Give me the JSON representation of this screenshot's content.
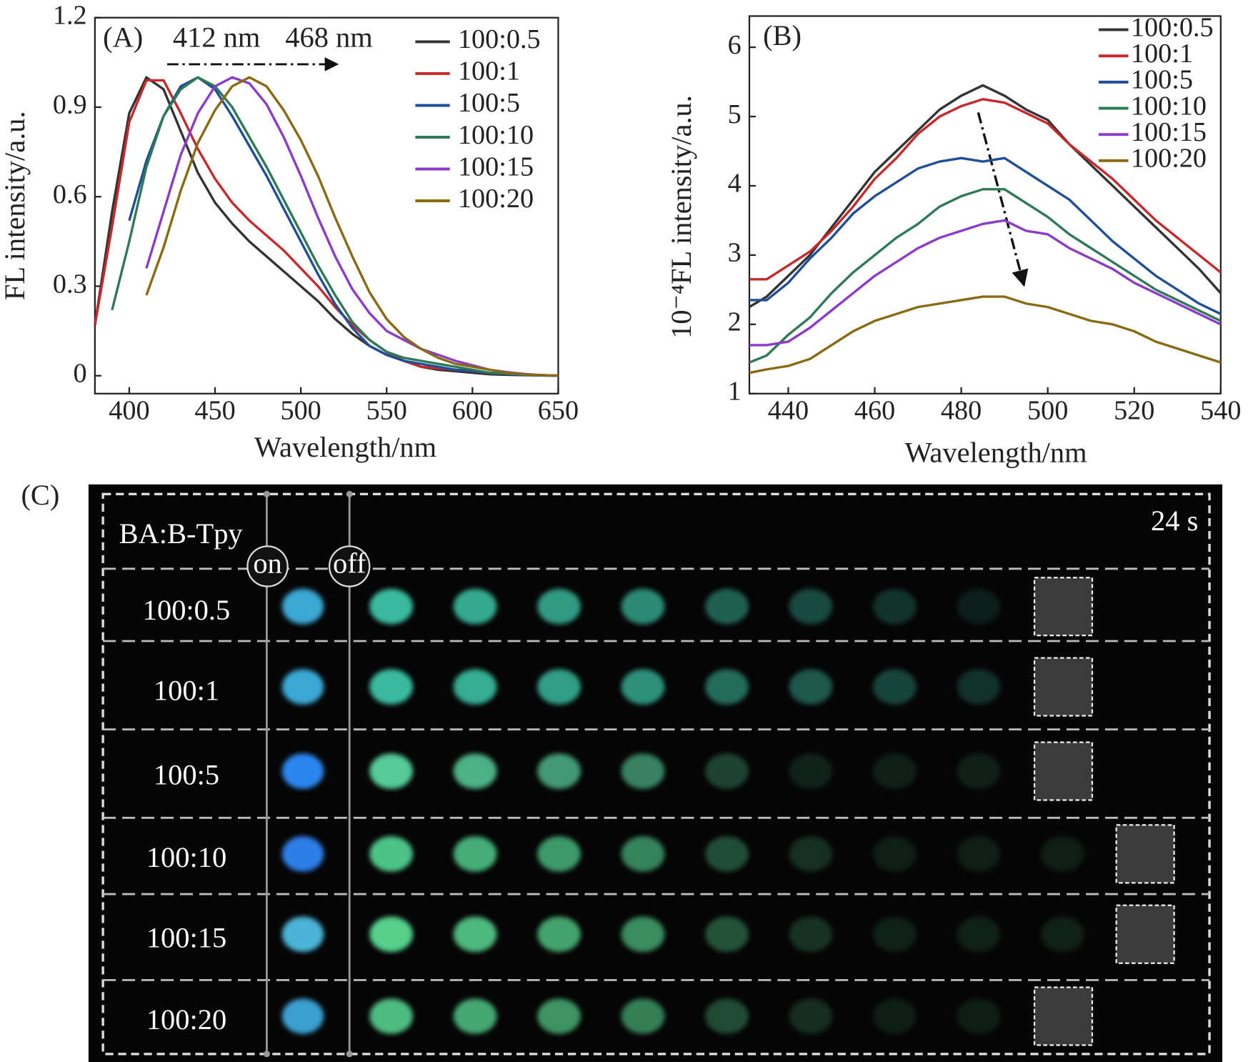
{
  "chart_data": [
    {
      "type": "line",
      "panel_label": "(A)",
      "xlabel": "Wavelength/nm",
      "ylabel": "FL intensity/a.u.",
      "annotations": [
        "412 nm",
        "468 nm"
      ],
      "x": [
        380,
        390,
        400,
        410,
        420,
        430,
        440,
        450,
        460,
        470,
        480,
        490,
        500,
        510,
        520,
        530,
        540,
        550,
        560,
        570,
        580,
        590,
        600,
        610,
        620,
        630,
        640,
        650
      ],
      "xlim": [
        380,
        650
      ],
      "xticks": [
        400,
        450,
        500,
        550,
        600,
        650
      ],
      "ylim": [
        -0.06,
        1.2
      ],
      "yticks": [
        0,
        0.3,
        0.6,
        0.9,
        1.2
      ],
      "series": [
        {
          "name": "100:0.5",
          "color": "#333333",
          "values": [
            0.17,
            0.55,
            0.88,
            1.0,
            0.96,
            0.82,
            0.68,
            0.58,
            0.51,
            0.45,
            0.4,
            0.35,
            0.3,
            0.25,
            0.19,
            0.14,
            0.1,
            0.07,
            0.05,
            0.03,
            0.02,
            0.015,
            0.01,
            0.005,
            0.003,
            0.002,
            0.001,
            0
          ]
        },
        {
          "name": "100:1",
          "color": "#c8282a",
          "values": [
            0.17,
            0.5,
            0.85,
            0.99,
            0.99,
            0.88,
            0.76,
            0.66,
            0.58,
            0.52,
            0.47,
            0.42,
            0.36,
            0.3,
            0.23,
            0.17,
            0.12,
            0.08,
            0.05,
            0.03,
            0.025,
            0.02,
            0.015,
            0.01,
            0.007,
            0.004,
            0.002,
            0
          ]
        },
        {
          "name": "100:5",
          "color": "#1f4e99",
          "values": [
            null,
            null,
            0.52,
            0.72,
            0.87,
            0.97,
            1.0,
            0.96,
            0.87,
            0.77,
            0.67,
            0.56,
            0.45,
            0.34,
            0.24,
            0.16,
            0.1,
            0.07,
            0.05,
            0.04,
            0.03,
            0.02,
            0.015,
            0.01,
            0.006,
            0.003,
            0.001,
            0
          ]
        },
        {
          "name": "100:10",
          "color": "#2e7a56",
          "values": [
            null,
            0.22,
            0.45,
            0.7,
            0.87,
            0.96,
            1.0,
            0.97,
            0.9,
            0.8,
            0.7,
            0.59,
            0.48,
            0.37,
            0.27,
            0.18,
            0.12,
            0.08,
            0.06,
            0.05,
            0.04,
            0.03,
            0.02,
            0.01,
            0.007,
            0.004,
            0.002,
            0
          ]
        },
        {
          "name": "100:15",
          "color": "#8a3bcc",
          "values": [
            null,
            null,
            null,
            0.36,
            0.55,
            0.74,
            0.88,
            0.97,
            1.0,
            0.98,
            0.91,
            0.8,
            0.67,
            0.53,
            0.4,
            0.29,
            0.21,
            0.15,
            0.12,
            0.09,
            0.07,
            0.05,
            0.035,
            0.02,
            0.012,
            0.006,
            0.002,
            0
          ]
        },
        {
          "name": "100:20",
          "color": "#8a6a10",
          "values": [
            null,
            null,
            null,
            0.27,
            0.43,
            0.62,
            0.78,
            0.89,
            0.97,
            1.0,
            0.97,
            0.89,
            0.79,
            0.67,
            0.53,
            0.4,
            0.28,
            0.19,
            0.13,
            0.09,
            0.06,
            0.04,
            0.03,
            0.02,
            0.01,
            0.005,
            0.002,
            0
          ]
        }
      ]
    },
    {
      "type": "line",
      "panel_label": "(B)",
      "xlabel": "Wavelength/nm",
      "ylabel": "10⁻⁴FL intensity/a.u.",
      "x": [
        431,
        435,
        440,
        445,
        450,
        455,
        460,
        465,
        470,
        475,
        480,
        485,
        490,
        495,
        500,
        505,
        510,
        515,
        520,
        525,
        530,
        535,
        540
      ],
      "xlim": [
        431,
        540
      ],
      "xticks": [
        440,
        460,
        480,
        500,
        520,
        540
      ],
      "ylim": [
        1,
        6.45
      ],
      "yticks": [
        1,
        2,
        3,
        4,
        5,
        6
      ],
      "series": [
        {
          "name": "100:0.5",
          "color": "#333333",
          "values": [
            2.25,
            2.4,
            2.7,
            3.0,
            3.4,
            3.8,
            4.2,
            4.5,
            4.8,
            5.1,
            5.3,
            5.45,
            5.3,
            5.1,
            4.95,
            4.6,
            4.3,
            4.0,
            3.7,
            3.4,
            3.1,
            2.8,
            2.45
          ]
        },
        {
          "name": "100:1",
          "color": "#c8282a",
          "values": [
            2.65,
            2.65,
            2.85,
            3.05,
            3.35,
            3.7,
            4.1,
            4.4,
            4.75,
            5.0,
            5.15,
            5.25,
            5.2,
            5.05,
            4.9,
            4.6,
            4.35,
            4.1,
            3.8,
            3.5,
            3.25,
            3.0,
            2.75
          ]
        },
        {
          "name": "100:5",
          "color": "#1f4e99",
          "values": [
            2.35,
            2.35,
            2.6,
            2.95,
            3.25,
            3.6,
            3.85,
            4.05,
            4.25,
            4.35,
            4.4,
            4.35,
            4.4,
            4.2,
            4.0,
            3.8,
            3.5,
            3.2,
            2.95,
            2.7,
            2.5,
            2.3,
            2.15
          ]
        },
        {
          "name": "100:10",
          "color": "#2e7a56",
          "values": [
            1.45,
            1.55,
            1.85,
            2.1,
            2.45,
            2.75,
            3.0,
            3.25,
            3.45,
            3.7,
            3.85,
            3.95,
            3.95,
            3.75,
            3.55,
            3.3,
            3.1,
            2.9,
            2.7,
            2.5,
            2.35,
            2.2,
            2.05
          ]
        },
        {
          "name": "100:15",
          "color": "#8a3bcc",
          "values": [
            1.7,
            1.7,
            1.75,
            1.95,
            2.2,
            2.45,
            2.7,
            2.9,
            3.1,
            3.25,
            3.35,
            3.45,
            3.5,
            3.35,
            3.3,
            3.1,
            2.95,
            2.8,
            2.6,
            2.45,
            2.3,
            2.15,
            2.0
          ]
        },
        {
          "name": "100:20",
          "color": "#8a6a10",
          "values": [
            1.3,
            1.35,
            1.4,
            1.5,
            1.7,
            1.9,
            2.05,
            2.15,
            2.25,
            2.3,
            2.35,
            2.4,
            2.4,
            2.3,
            2.25,
            2.15,
            2.05,
            2.0,
            1.9,
            1.75,
            1.65,
            1.55,
            1.45
          ]
        }
      ]
    }
  ],
  "photo_panel": {
    "panel_label": "(C)",
    "title": "BA:B-Tpy",
    "on": "on",
    "off": "off",
    "time": "24 s",
    "rows": [
      "100:0.5",
      "100:1",
      "100:5",
      "100:10",
      "100:15",
      "100:20"
    ]
  }
}
